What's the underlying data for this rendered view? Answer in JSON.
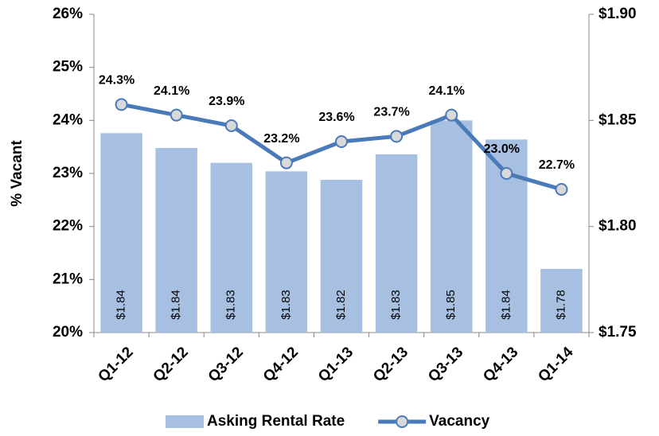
{
  "chart_data": {
    "type": "bar-line",
    "ylabel": "% Vacant",
    "categories": [
      "Q1-12",
      "Q2-12",
      "Q3-12",
      "Q4-12",
      "Q1-13",
      "Q2-13",
      "Q3-13",
      "Q4-13",
      "Q1-14"
    ],
    "series": [
      {
        "name": "Asking Rental Rate",
        "type": "bar",
        "axis": "y2",
        "color": "#a7c0e1",
        "values": [
          1.844,
          1.837,
          1.83,
          1.826,
          1.822,
          1.834,
          1.85,
          1.841,
          1.78
        ],
        "value_labels": [
          "$1.84",
          "$1.84",
          "$1.83",
          "$1.83",
          "$1.82",
          "$1.83",
          "$1.85",
          "$1.84",
          "$1.78"
        ]
      },
      {
        "name": "Vacancy",
        "type": "line",
        "color": "#4a7ab8",
        "marker_fill": "#d9d9d9",
        "values": [
          24.3,
          24.1,
          23.9,
          23.2,
          23.6,
          23.7,
          24.1,
          23.0,
          22.7
        ],
        "value_labels": [
          "24.3%",
          "24.1%",
          "23.9%",
          "23.2%",
          "23.6%",
          "23.7%",
          "24.1%",
          "23.0%",
          "22.7%"
        ]
      }
    ],
    "ylim": [
      20,
      26
    ],
    "yticks": [
      {
        "value": 20,
        "label": "20%"
      },
      {
        "value": 21,
        "label": "21%"
      },
      {
        "value": 22,
        "label": "22%"
      },
      {
        "value": 23,
        "label": "23%"
      },
      {
        "value": 24,
        "label": "24%"
      },
      {
        "value": 25,
        "label": "25%"
      },
      {
        "value": 26,
        "label": "26%"
      }
    ],
    "y2lim": [
      1.75,
      1.9
    ],
    "y2ticks": [
      {
        "value": 1.75,
        "label": "$1.75"
      },
      {
        "value": 1.8,
        "label": "$1.80"
      },
      {
        "value": 1.85,
        "label": "$1.85"
      },
      {
        "value": 1.9,
        "label": "$1.90"
      }
    ],
    "legend": "bottom"
  }
}
